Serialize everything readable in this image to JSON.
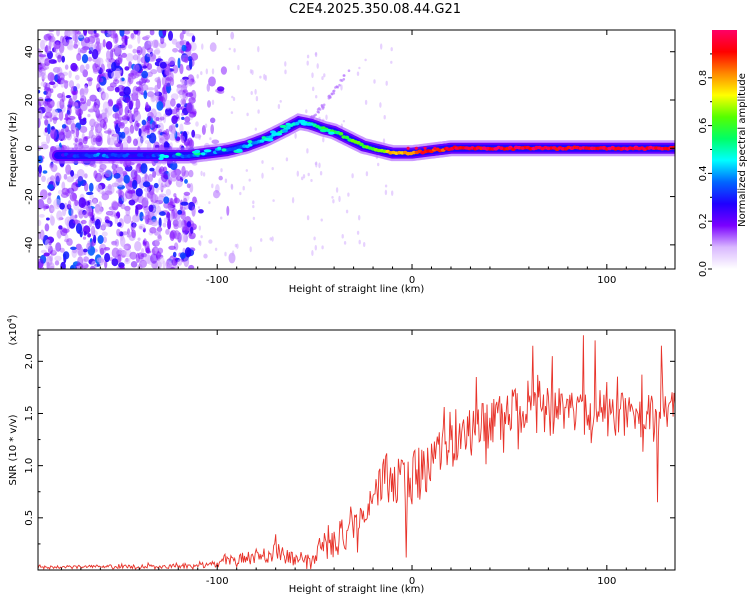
{
  "page_title": "C2E4.2025.350.08.44.G21",
  "chart_data": [
    {
      "id": "spectrogram",
      "type": "heatmap",
      "xlabel": "Height of straight line (km)",
      "ylabel": "Frequency (Hz)",
      "xlim": [
        -192,
        135
      ],
      "ylim": [
        -50,
        49
      ],
      "x_ticks": [
        -100,
        0,
        100
      ],
      "x_tick_labels": [
        "-100",
        "0",
        "100"
      ],
      "y_ticks": [
        -40,
        -20,
        0,
        20,
        40
      ],
      "y_tick_labels": [
        "-40",
        "-20",
        "0",
        "20",
        "40"
      ],
      "colorbar": {
        "label": "Normalized spectral amplitude",
        "range": [
          0,
          1
        ],
        "ticks": [
          0.0,
          0.2,
          0.4,
          0.6,
          0.8
        ],
        "tick_labels": [
          "0.0",
          "0.2",
          "0.4",
          "0.6",
          "0.8"
        ],
        "colormap": [
          "#ffffff",
          "#d9b8ff",
          "#7a00ff",
          "#1f00ff",
          "#0066ff",
          "#00ffff",
          "#00ff66",
          "#55ff00",
          "#ffff00",
          "#ff8800",
          "#ff0000",
          "#ff0066"
        ]
      },
      "ridge": {
        "x": [
          -182,
          -170,
          -160,
          -150,
          -140,
          -125,
          -115,
          -105,
          -95,
          -85,
          -75,
          -65,
          -58,
          -52,
          -45,
          -40,
          -35,
          -30,
          -25,
          -20,
          -15,
          -10,
          -5,
          0,
          10,
          20,
          40,
          60,
          80,
          100,
          120,
          135
        ],
        "y": [
          -3,
          -3,
          -3,
          -3,
          -3,
          -3,
          -3,
          -2,
          -1,
          1,
          4,
          8,
          11,
          10,
          8,
          7,
          5,
          3,
          1,
          0,
          -1,
          -2,
          -2,
          -2,
          -1,
          0,
          0,
          0,
          0,
          0,
          0,
          0
        ],
        "amplitude": [
          0.25,
          0.3,
          0.35,
          0.3,
          0.3,
          0.3,
          0.35,
          0.35,
          0.35,
          0.4,
          0.45,
          0.5,
          0.45,
          0.5,
          0.55,
          0.55,
          0.6,
          0.6,
          0.6,
          0.65,
          0.7,
          0.75,
          0.8,
          0.85,
          0.9,
          0.9,
          0.95,
          0.95,
          0.95,
          0.95,
          0.95,
          0.95
        ]
      },
      "faint_branch": {
        "x": [
          -52,
          -45,
          -38,
          -32
        ],
        "y": [
          12,
          18,
          26,
          33
        ]
      }
    },
    {
      "id": "snr",
      "type": "line",
      "xlabel": "Height of straight line (km)",
      "ylabel": "SNR (10 * v/v)",
      "y_scale_label": "(x10",
      "y_scale_exponent": "4",
      "y_scale_close": ")",
      "xlim": [
        -192,
        135
      ],
      "ylim": [
        0,
        2.3
      ],
      "x_ticks": [
        -100,
        0,
        100
      ],
      "x_tick_labels": [
        "-100",
        "0",
        "100"
      ],
      "y_ticks": [
        0.5,
        1.0,
        1.5,
        2.0
      ],
      "y_tick_labels": [
        "0.5",
        "1.0",
        "1.5",
        "2.0"
      ],
      "color": "#e8332a",
      "envelope": {
        "x": [
          -192,
          -150,
          -110,
          -95,
          -80,
          -70,
          -60,
          -50,
          -40,
          -30,
          -20,
          -10,
          0,
          10,
          20,
          30,
          40,
          50,
          60,
          70,
          80,
          90,
          100,
          110,
          120,
          135
        ],
        "mean": [
          0.03,
          0.03,
          0.04,
          0.08,
          0.13,
          0.18,
          0.1,
          0.12,
          0.25,
          0.45,
          0.75,
          0.9,
          0.85,
          1.05,
          1.2,
          1.3,
          1.4,
          1.5,
          1.55,
          1.5,
          1.55,
          1.55,
          1.5,
          1.5,
          1.5,
          1.5
        ],
        "noise": [
          0.02,
          0.02,
          0.03,
          0.06,
          0.1,
          0.12,
          0.08,
          0.1,
          0.18,
          0.25,
          0.3,
          0.35,
          0.35,
          0.3,
          0.3,
          0.3,
          0.3,
          0.28,
          0.28,
          0.28,
          0.28,
          0.28,
          0.28,
          0.28,
          0.28,
          0.28
        ]
      },
      "peaks": [
        {
          "x": -5,
          "y": 1.05
        },
        {
          "x": 33,
          "y": 1.85
        },
        {
          "x": 62,
          "y": 2.15
        },
        {
          "x": 72,
          "y": 2.05
        },
        {
          "x": 88,
          "y": 2.25
        },
        {
          "x": 94,
          "y": 2.2
        },
        {
          "x": 128,
          "y": 2.15
        },
        {
          "x": 126,
          "y": 0.65
        },
        {
          "x": -3,
          "y": 0.12
        }
      ]
    }
  ]
}
